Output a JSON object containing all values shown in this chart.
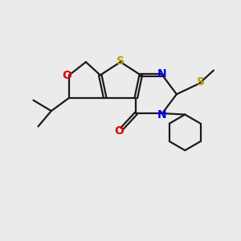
{
  "bg_color": "#ebebeb",
  "bond_color": "#1a1a1a",
  "S_color": "#b8a000",
  "N_color": "#0000ee",
  "O_color": "#dd0000",
  "line_width": 1.6,
  "figsize": [
    3.0,
    3.0
  ],
  "dpi": 100,
  "xlim": [
    0,
    10
  ],
  "ylim": [
    0,
    10
  ]
}
